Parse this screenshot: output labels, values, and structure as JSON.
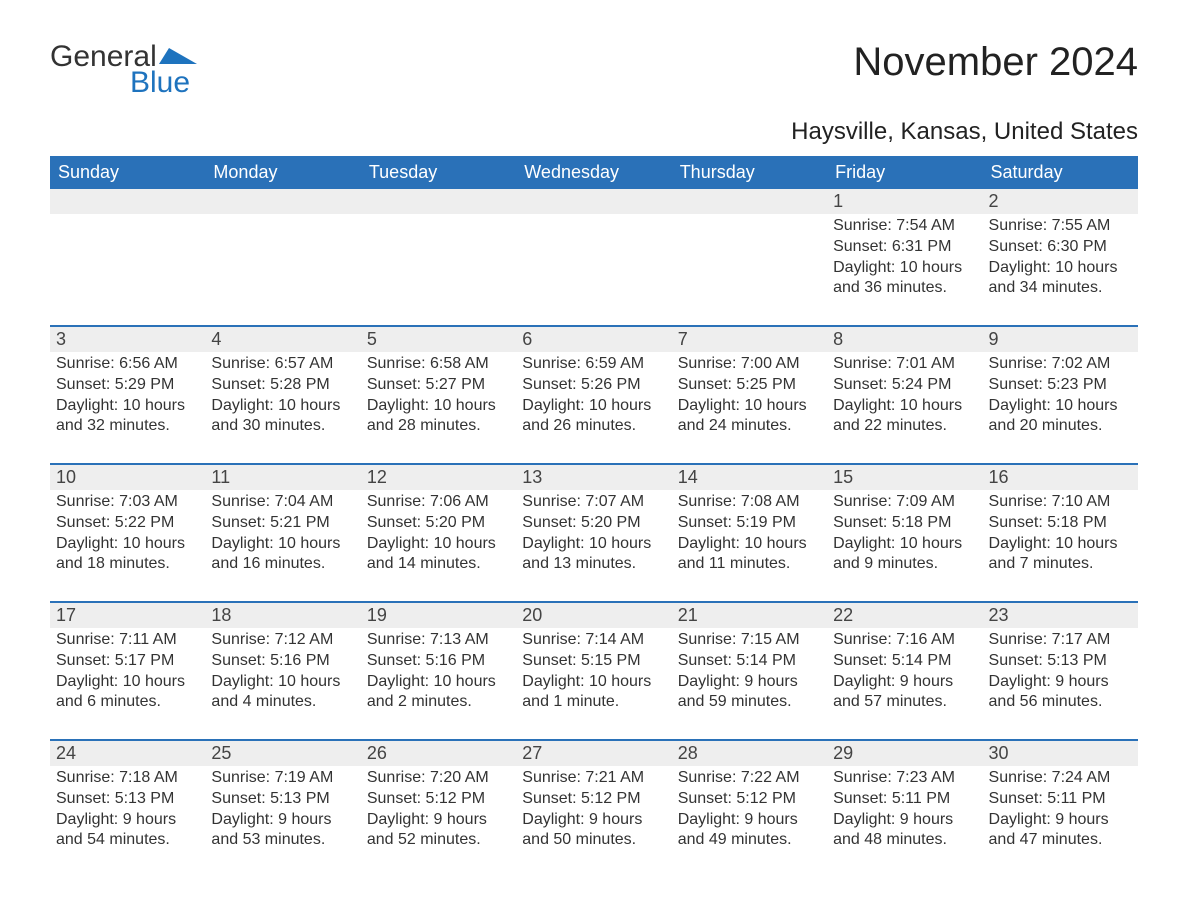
{
  "logo": {
    "general": "General",
    "blue": "Blue",
    "flag_color": "#1e73be"
  },
  "title": "November 2024",
  "location": "Haysville, Kansas, United States",
  "colors": {
    "header_bg": "#2a71b8",
    "header_text": "#ffffff",
    "daynum_bg": "#eeeeee",
    "border": "#2a71b8",
    "text": "#333333"
  },
  "day_names": [
    "Sunday",
    "Monday",
    "Tuesday",
    "Wednesday",
    "Thursday",
    "Friday",
    "Saturday"
  ],
  "weeks": [
    [
      null,
      null,
      null,
      null,
      null,
      {
        "n": "1",
        "sunrise": "Sunrise: 7:54 AM",
        "sunset": "Sunset: 6:31 PM",
        "daylight": "Daylight: 10 hours and 36 minutes."
      },
      {
        "n": "2",
        "sunrise": "Sunrise: 7:55 AM",
        "sunset": "Sunset: 6:30 PM",
        "daylight": "Daylight: 10 hours and 34 minutes."
      }
    ],
    [
      {
        "n": "3",
        "sunrise": "Sunrise: 6:56 AM",
        "sunset": "Sunset: 5:29 PM",
        "daylight": "Daylight: 10 hours and 32 minutes."
      },
      {
        "n": "4",
        "sunrise": "Sunrise: 6:57 AM",
        "sunset": "Sunset: 5:28 PM",
        "daylight": "Daylight: 10 hours and 30 minutes."
      },
      {
        "n": "5",
        "sunrise": "Sunrise: 6:58 AM",
        "sunset": "Sunset: 5:27 PM",
        "daylight": "Daylight: 10 hours and 28 minutes."
      },
      {
        "n": "6",
        "sunrise": "Sunrise: 6:59 AM",
        "sunset": "Sunset: 5:26 PM",
        "daylight": "Daylight: 10 hours and 26 minutes."
      },
      {
        "n": "7",
        "sunrise": "Sunrise: 7:00 AM",
        "sunset": "Sunset: 5:25 PM",
        "daylight": "Daylight: 10 hours and 24 minutes."
      },
      {
        "n": "8",
        "sunrise": "Sunrise: 7:01 AM",
        "sunset": "Sunset: 5:24 PM",
        "daylight": "Daylight: 10 hours and 22 minutes."
      },
      {
        "n": "9",
        "sunrise": "Sunrise: 7:02 AM",
        "sunset": "Sunset: 5:23 PM",
        "daylight": "Daylight: 10 hours and 20 minutes."
      }
    ],
    [
      {
        "n": "10",
        "sunrise": "Sunrise: 7:03 AM",
        "sunset": "Sunset: 5:22 PM",
        "daylight": "Daylight: 10 hours and 18 minutes."
      },
      {
        "n": "11",
        "sunrise": "Sunrise: 7:04 AM",
        "sunset": "Sunset: 5:21 PM",
        "daylight": "Daylight: 10 hours and 16 minutes."
      },
      {
        "n": "12",
        "sunrise": "Sunrise: 7:06 AM",
        "sunset": "Sunset: 5:20 PM",
        "daylight": "Daylight: 10 hours and 14 minutes."
      },
      {
        "n": "13",
        "sunrise": "Sunrise: 7:07 AM",
        "sunset": "Sunset: 5:20 PM",
        "daylight": "Daylight: 10 hours and 13 minutes."
      },
      {
        "n": "14",
        "sunrise": "Sunrise: 7:08 AM",
        "sunset": "Sunset: 5:19 PM",
        "daylight": "Daylight: 10 hours and 11 minutes."
      },
      {
        "n": "15",
        "sunrise": "Sunrise: 7:09 AM",
        "sunset": "Sunset: 5:18 PM",
        "daylight": "Daylight: 10 hours and 9 minutes."
      },
      {
        "n": "16",
        "sunrise": "Sunrise: 7:10 AM",
        "sunset": "Sunset: 5:18 PM",
        "daylight": "Daylight: 10 hours and 7 minutes."
      }
    ],
    [
      {
        "n": "17",
        "sunrise": "Sunrise: 7:11 AM",
        "sunset": "Sunset: 5:17 PM",
        "daylight": "Daylight: 10 hours and 6 minutes."
      },
      {
        "n": "18",
        "sunrise": "Sunrise: 7:12 AM",
        "sunset": "Sunset: 5:16 PM",
        "daylight": "Daylight: 10 hours and 4 minutes."
      },
      {
        "n": "19",
        "sunrise": "Sunrise: 7:13 AM",
        "sunset": "Sunset: 5:16 PM",
        "daylight": "Daylight: 10 hours and 2 minutes."
      },
      {
        "n": "20",
        "sunrise": "Sunrise: 7:14 AM",
        "sunset": "Sunset: 5:15 PM",
        "daylight": "Daylight: 10 hours and 1 minute."
      },
      {
        "n": "21",
        "sunrise": "Sunrise: 7:15 AM",
        "sunset": "Sunset: 5:14 PM",
        "daylight": "Daylight: 9 hours and 59 minutes."
      },
      {
        "n": "22",
        "sunrise": "Sunrise: 7:16 AM",
        "sunset": "Sunset: 5:14 PM",
        "daylight": "Daylight: 9 hours and 57 minutes."
      },
      {
        "n": "23",
        "sunrise": "Sunrise: 7:17 AM",
        "sunset": "Sunset: 5:13 PM",
        "daylight": "Daylight: 9 hours and 56 minutes."
      }
    ],
    [
      {
        "n": "24",
        "sunrise": "Sunrise: 7:18 AM",
        "sunset": "Sunset: 5:13 PM",
        "daylight": "Daylight: 9 hours and 54 minutes."
      },
      {
        "n": "25",
        "sunrise": "Sunrise: 7:19 AM",
        "sunset": "Sunset: 5:13 PM",
        "daylight": "Daylight: 9 hours and 53 minutes."
      },
      {
        "n": "26",
        "sunrise": "Sunrise: 7:20 AM",
        "sunset": "Sunset: 5:12 PM",
        "daylight": "Daylight: 9 hours and 52 minutes."
      },
      {
        "n": "27",
        "sunrise": "Sunrise: 7:21 AM",
        "sunset": "Sunset: 5:12 PM",
        "daylight": "Daylight: 9 hours and 50 minutes."
      },
      {
        "n": "28",
        "sunrise": "Sunrise: 7:22 AM",
        "sunset": "Sunset: 5:12 PM",
        "daylight": "Daylight: 9 hours and 49 minutes."
      },
      {
        "n": "29",
        "sunrise": "Sunrise: 7:23 AM",
        "sunset": "Sunset: 5:11 PM",
        "daylight": "Daylight: 9 hours and 48 minutes."
      },
      {
        "n": "30",
        "sunrise": "Sunrise: 7:24 AM",
        "sunset": "Sunset: 5:11 PM",
        "daylight": "Daylight: 9 hours and 47 minutes."
      }
    ]
  ]
}
